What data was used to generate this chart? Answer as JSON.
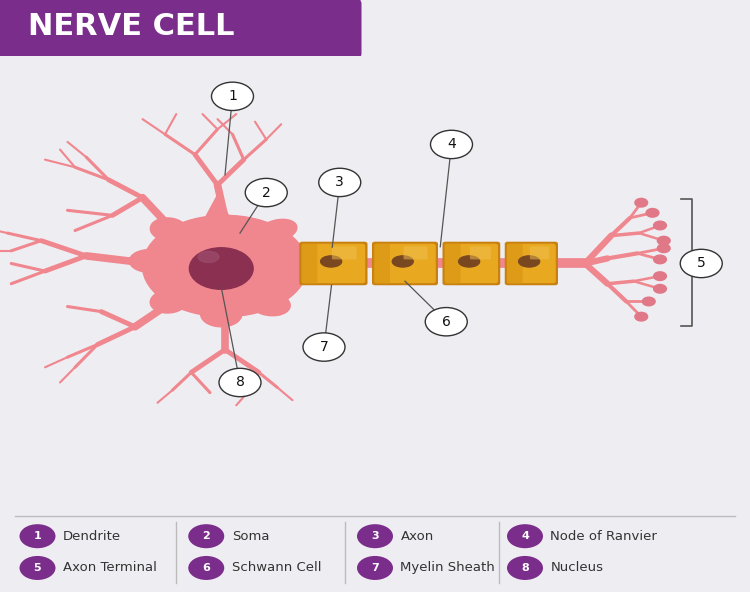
{
  "title": "NERVE CELL",
  "title_bg_color": "#7B2D8B",
  "title_text_color": "#FFFFFF",
  "bg_color": "#EEEDF2",
  "soma_color": "#F0868E",
  "soma_edge_color": "#E07078",
  "nucleus_color": "#8B3050",
  "dendrite_color": "#F0868E",
  "axon_color": "#F0868E",
  "myelin_color": "#E8A820",
  "myelin_edge_color": "#C88010",
  "myelin_nucleus_color": "#7A4820",
  "node_color": "#F0868E",
  "terminal_color": "#F0868E",
  "terminal_bulb_color": "#E07888",
  "label_circle_bg": "#FFFFFF",
  "label_circle_edge": "#333333",
  "label_text_color": "#111111",
  "legend_circle_color": "#7B2D8B",
  "legend_text_color": "#333333",
  "callout_line_color": "#555555",
  "separator_color": "#BBBBBB",
  "legend_items": [
    {
      "num": "1",
      "label": "Dendrite"
    },
    {
      "num": "2",
      "label": "Soma"
    },
    {
      "num": "3",
      "label": "Axon"
    },
    {
      "num": "4",
      "label": "Node of Ranvier"
    },
    {
      "num": "5",
      "label": "Axon Terminal"
    },
    {
      "num": "6",
      "label": "Schwann Cell"
    },
    {
      "num": "7",
      "label": "Myelin Sheath"
    },
    {
      "num": "8",
      "label": "Nucleus"
    }
  ]
}
